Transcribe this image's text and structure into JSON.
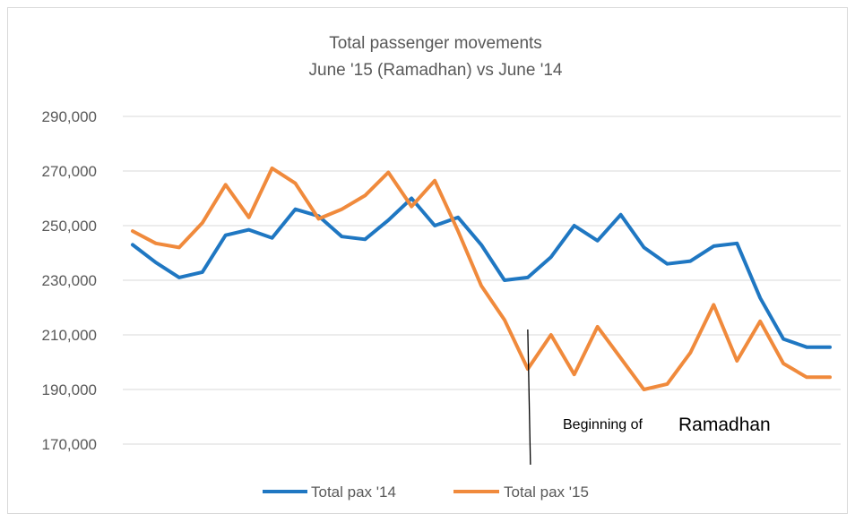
{
  "chart_data": {
    "type": "line",
    "title": "Total passenger movements",
    "subtitle": "June '15 (Ramadhan) vs June '14",
    "xlabel": "",
    "ylabel": "",
    "ylim": [
      170000,
      290000
    ],
    "yticks": [
      290000,
      270000,
      250000,
      230000,
      210000,
      190000,
      170000
    ],
    "ytick_labels": [
      "290,000",
      "270,000",
      "250,000",
      "230,000",
      "210,000",
      "190,000",
      "170,000"
    ],
    "grid": true,
    "legend_position": "bottom",
    "x": [
      1,
      2,
      3,
      4,
      5,
      6,
      7,
      8,
      9,
      10,
      11,
      12,
      13,
      14,
      15,
      16,
      17,
      18,
      19,
      20,
      21,
      22,
      23,
      24,
      25,
      26,
      27,
      28,
      29,
      30,
      31
    ],
    "series": [
      {
        "name": "Total pax '14",
        "color": "#1f77c2",
        "values": [
          243000,
          236500,
          231000,
          233000,
          246500,
          248500,
          245500,
          256000,
          253500,
          246000,
          245000,
          252000,
          260000,
          250000,
          253000,
          243000,
          230000,
          231000,
          238500,
          250000,
          244500,
          254000,
          242000,
          236000,
          237000,
          242500,
          243500,
          223500,
          208500,
          205500,
          205500
        ]
      },
      {
        "name": "Total pax '15",
        "color": "#f08a3c",
        "values": [
          248000,
          243500,
          242000,
          251000,
          265000,
          253000,
          271000,
          265500,
          252500,
          256000,
          261000,
          269500,
          257000,
          266500,
          248000,
          228000,
          215500,
          197500,
          210000,
          195500,
          213000,
          201500,
          190000,
          192000,
          203500,
          221000,
          200500,
          215000,
          199500,
          194500,
          194500
        ]
      }
    ],
    "annotation": {
      "text_small": "Beginning of",
      "text_large": "Ramadhan",
      "marker_x": 18
    }
  }
}
